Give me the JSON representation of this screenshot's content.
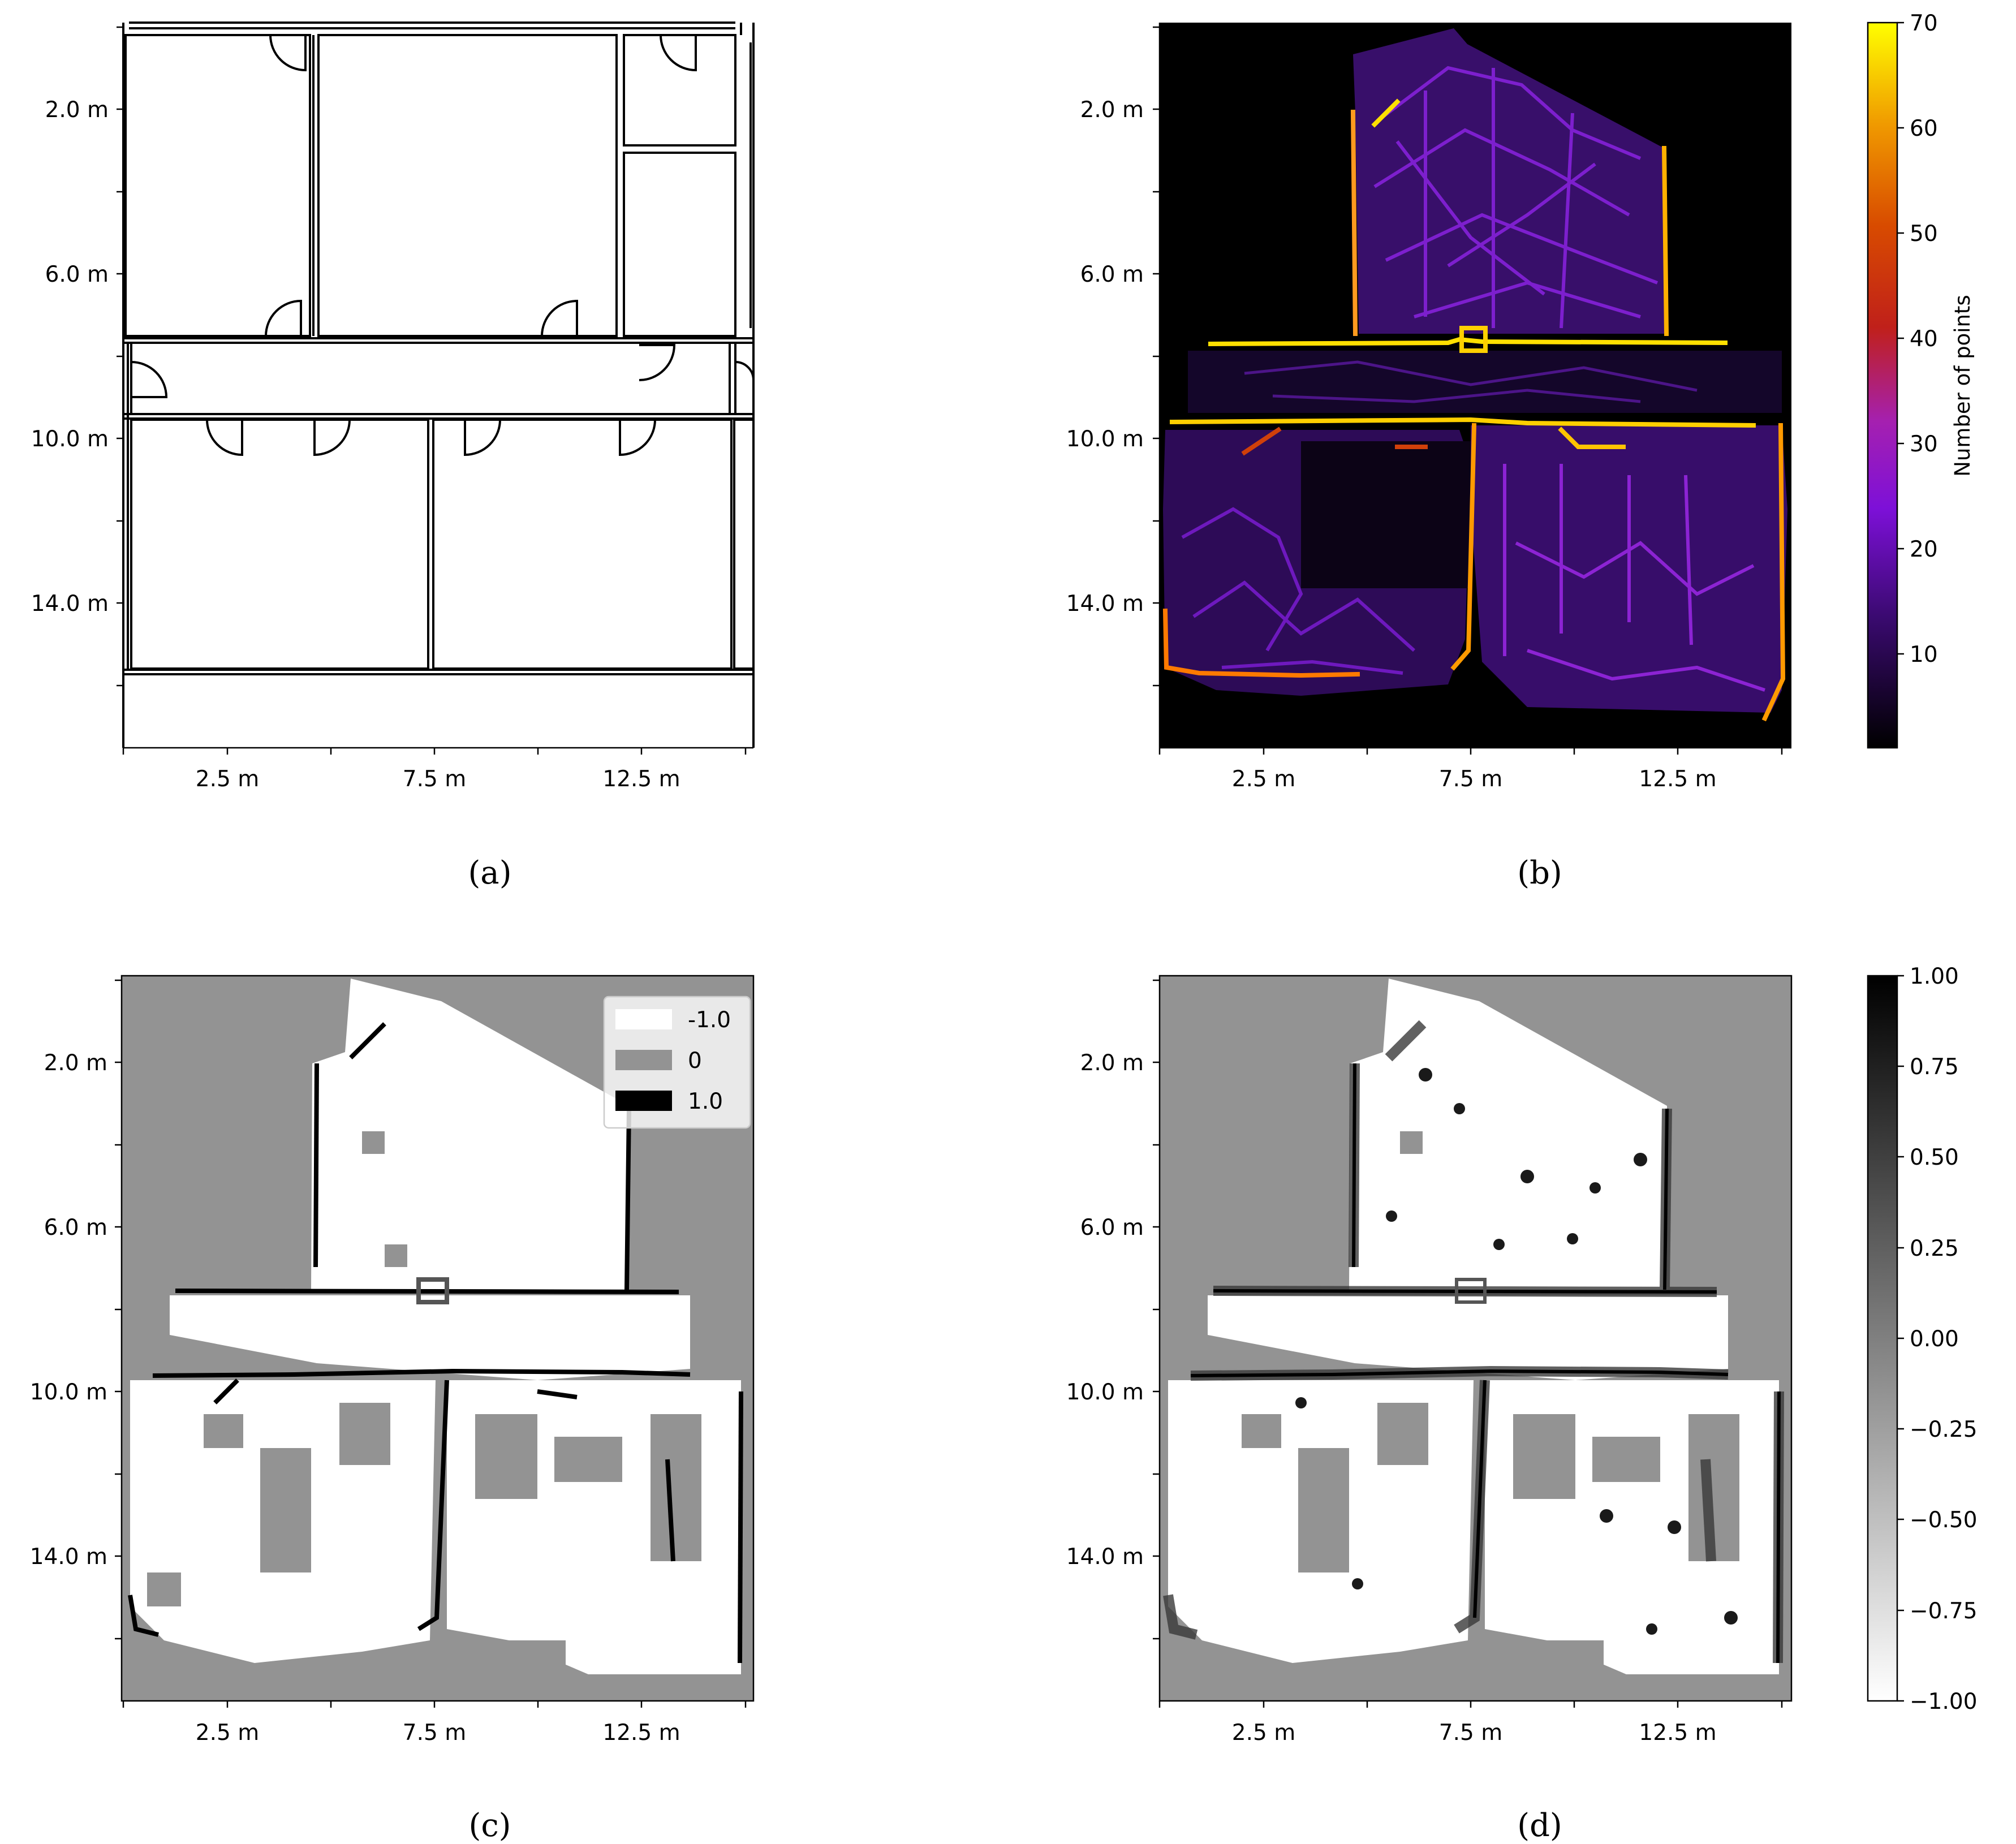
{
  "figure": {
    "panels": [
      {
        "id": "a",
        "caption": "(a)",
        "kind": "floorplan"
      },
      {
        "id": "b",
        "caption": "(b)",
        "kind": "point-count-heatmap"
      },
      {
        "id": "c",
        "caption": "(c)",
        "kind": "discrete-occupancy-map"
      },
      {
        "id": "d",
        "caption": "(d)",
        "kind": "continuous-occupancy-map"
      }
    ]
  },
  "chart_data": [
    {
      "type": "heatmap",
      "panel": "a",
      "title": "",
      "xlabel": "",
      "ylabel": "",
      "x_ticks": [
        "2.5 m",
        "7.5 m",
        "12.5 m"
      ],
      "y_ticks": [
        "2.0 m",
        "6.0 m",
        "10.0 m",
        "14.0 m"
      ],
      "xlim": [
        0,
        15.2
      ],
      "ylim": [
        17.5,
        0
      ],
      "description_values": {
        "walls": "outline",
        "doors": "quarter-circle swings"
      }
    },
    {
      "type": "heatmap",
      "panel": "b",
      "title": "",
      "xlabel": "",
      "ylabel": "",
      "x_ticks": [
        "2.5 m",
        "7.5 m",
        "12.5 m"
      ],
      "y_ticks": [
        "2.0 m",
        "6.0 m",
        "10.0 m",
        "14.0 m"
      ],
      "xlim": [
        0,
        15.2
      ],
      "ylim": [
        17.5,
        0
      ],
      "colorbar": {
        "label": "Number of points",
        "ticks": [
          "10",
          "20",
          "30",
          "40",
          "50",
          "60",
          "70"
        ],
        "range": [
          1,
          70
        ],
        "colormap": "gnuplot"
      },
      "background": "#000000"
    },
    {
      "type": "heatmap",
      "panel": "c",
      "title": "",
      "xlabel": "",
      "ylabel": "",
      "x_ticks": [
        "2.5 m",
        "7.5 m",
        "12.5 m"
      ],
      "y_ticks": [
        "2.0 m",
        "6.0 m",
        "10.0 m",
        "14.0 m"
      ],
      "xlim": [
        0,
        15.2
      ],
      "ylim": [
        17.5,
        0
      ],
      "legend": {
        "placement": "top-right",
        "entries": [
          {
            "label": "-1.0",
            "color": "#ffffff"
          },
          {
            "label": "0",
            "color": "#939393"
          },
          {
            "label": "1.0",
            "color": "#000000"
          }
        ]
      },
      "values": [
        -1.0,
        0,
        1.0
      ]
    },
    {
      "type": "heatmap",
      "panel": "d",
      "title": "",
      "xlabel": "",
      "ylabel": "",
      "x_ticks": [
        "2.5 m",
        "7.5 m",
        "12.5 m"
      ],
      "y_ticks": [
        "2.0 m",
        "6.0 m",
        "10.0 m",
        "14.0 m"
      ],
      "xlim": [
        0,
        15.2
      ],
      "ylim": [
        17.5,
        0
      ],
      "colorbar": {
        "label": "",
        "ticks": [
          "1.00",
          "0.75",
          "0.50",
          "0.25",
          "0.00",
          "−0.25",
          "−0.50",
          "−0.75",
          "−1.00"
        ],
        "range": [
          -1,
          1
        ],
        "colormap": "gray_r"
      }
    }
  ],
  "colors": {
    "occupancy_unknown": "#939393",
    "occupancy_free": "#ffffff",
    "occupancy_wall": "#000000",
    "heat_background": "#000000",
    "heat_low": "#6a1fb0",
    "heat_mid": "#c7361a",
    "heat_high": "#ffea00"
  }
}
